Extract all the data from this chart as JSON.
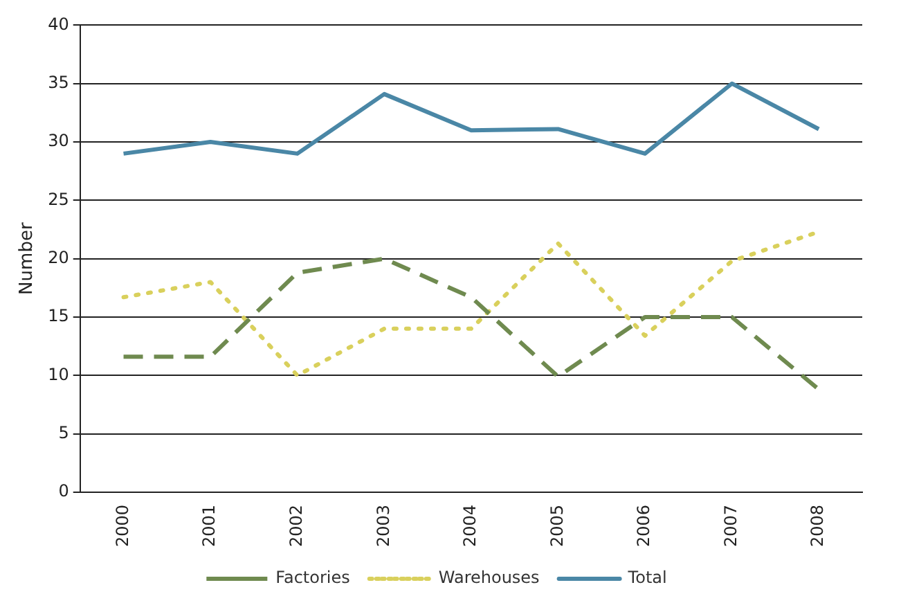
{
  "chart_data": {
    "type": "line",
    "ylabel": "Number",
    "categories": [
      "2000",
      "2001",
      "2002",
      "2003",
      "2004",
      "2005",
      "2006",
      "2007",
      "2008"
    ],
    "series": [
      {
        "name": "Factories",
        "color": "#6f8a4f",
        "line_style": "dashed",
        "values": [
          11.6,
          11.6,
          18.8,
          20,
          16.7,
          9.9,
          15,
          15,
          8.8
        ]
      },
      {
        "name": "Warehouses",
        "color": "#d9d05c",
        "line_style": "dotted",
        "values": [
          16.7,
          18,
          10,
          14,
          14,
          21.3,
          13.4,
          19.8,
          22.3
        ]
      },
      {
        "name": "Total",
        "color": "#4a87a6",
        "line_style": "solid",
        "values": [
          29,
          30,
          29,
          34.1,
          31,
          31.1,
          29,
          35,
          31.1
        ]
      }
    ],
    "ylim": [
      0,
      40
    ],
    "yticks": [
      0,
      5,
      10,
      15,
      20,
      25,
      30,
      35,
      40
    ],
    "grid": "y",
    "legend": "bottom",
    "marker": "none"
  }
}
